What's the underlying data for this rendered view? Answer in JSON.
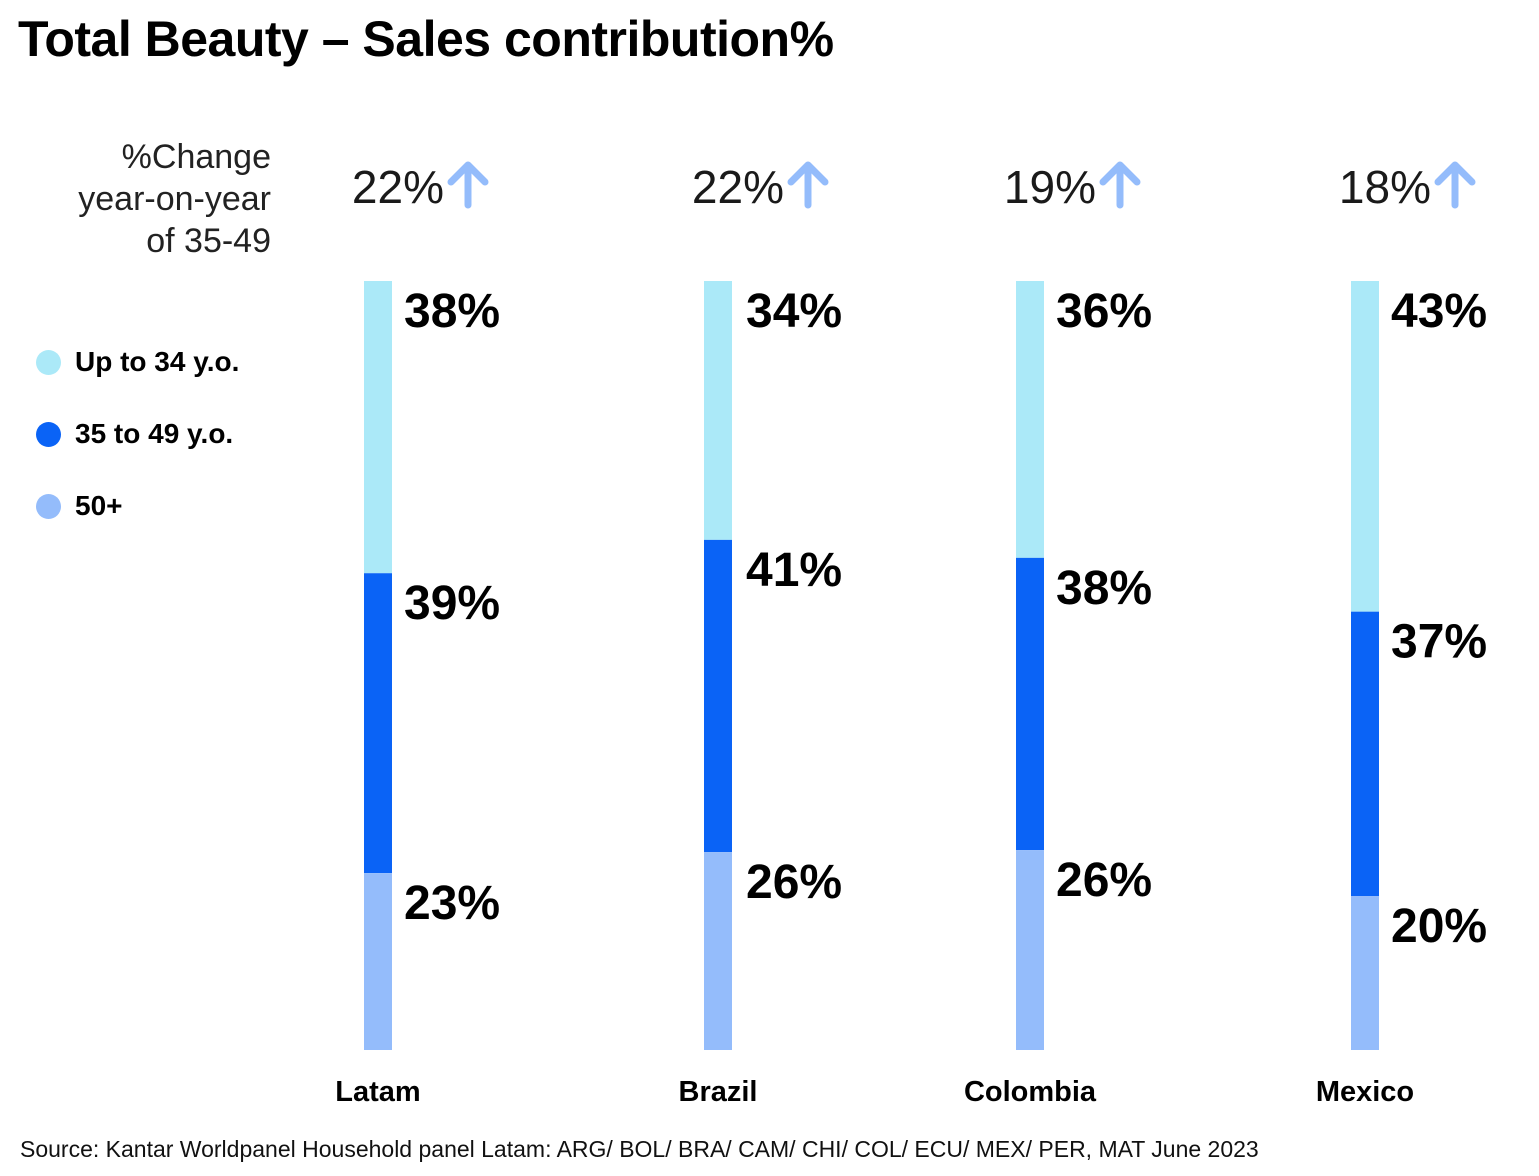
{
  "title": "Total Beauty – Sales contribution%",
  "yoy_label": {
    "line1": "%Change",
    "line2": "year-on-year",
    "line3": "of 35-49"
  },
  "legend": [
    {
      "label": "Up to 34 y.o.",
      "color": "#abe9f8"
    },
    {
      "label": "35 to 49 y.o.",
      "color": "#0a63f6"
    },
    {
      "label": "50+",
      "color": "#94bcfb"
    }
  ],
  "source": "Source: Kantar Worldpanel Household panel Latam: ARG/ BOL/ BRA/ CAM/ CHI/ COL/ ECU/ MEX/ PER, MAT June 2023",
  "chart_data": {
    "type": "bar",
    "stacked": true,
    "categories": [
      "Latam",
      "Brazil",
      "Colombia",
      "Mexico"
    ],
    "series": [
      {
        "name": "Up to 34 y.o.",
        "values": [
          38,
          34,
          36,
          43
        ],
        "labels": [
          "38%",
          "34%",
          "36%",
          "43%"
        ],
        "color": "#abe9f8"
      },
      {
        "name": "35 to 49 y.o.",
        "values": [
          39,
          41,
          38,
          37
        ],
        "labels": [
          "39%",
          "41%",
          "38%",
          "37%"
        ],
        "color": "#0a63f6"
      },
      {
        "name": "50+",
        "values": [
          23,
          26,
          26,
          20
        ],
        "labels": [
          "23%",
          "26%",
          "26%",
          "20%"
        ],
        "color": "#94bcfb"
      }
    ],
    "yoy_change_35_49": [
      "22%",
      "22%",
      "19%",
      "18%"
    ],
    "arrow_color": "#94bcfb",
    "ylim": [
      0,
      100
    ],
    "grid": false
  }
}
